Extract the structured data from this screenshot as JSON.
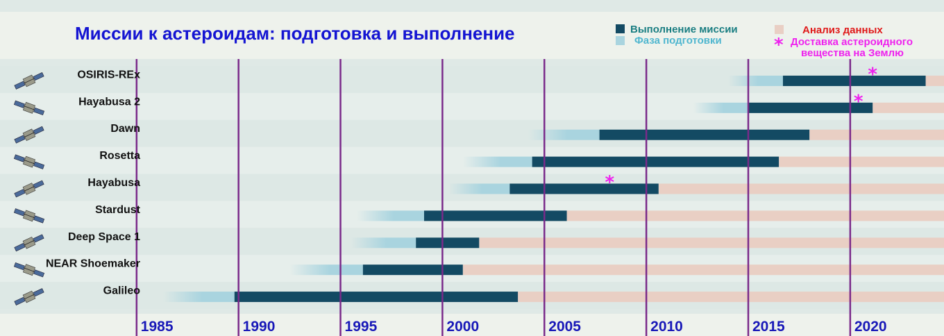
{
  "chart_data": {
    "type": "gantt",
    "title": "Миссии к астероидам: подготовка и выполнение",
    "legend": {
      "mission": "Выполнение миссии",
      "prep": "Фаза подготовки",
      "analysis": "Анализ данных",
      "delivery_marker": "*",
      "delivery_line1": "Доставка  астероидного",
      "delivery_line2": "вещества на Землю"
    },
    "colors": {
      "mission": "#134a63",
      "prep": "#a9d4df",
      "analysis": "#e9cfc4",
      "delivery": "#ee22ee",
      "gridline": "#7a2a8a",
      "title": "#1414d2",
      "year_label": "#1818b8"
    },
    "x_ticks": [
      "1985",
      "1990",
      "1995",
      "2000",
      "2005",
      "2010",
      "2015",
      "2020"
    ],
    "xlim": [
      1978.3,
      2024.6
    ],
    "gridline_years": [
      1985,
      1990,
      1995,
      2000,
      2005,
      2010,
      2015,
      2020,
      2025
    ],
    "missions": [
      {
        "name": "OSIRIS-REx",
        "prep_start": 2014.0,
        "mission_start": 2016.7,
        "mission_end": 2023.7,
        "delivery_year": 2021.1,
        "icon": "satellite-icon"
      },
      {
        "name": "Hayabusa 2",
        "prep_start": 2012.3,
        "mission_start": 2015.0,
        "mission_end": 2021.1,
        "delivery_year": 2020.4,
        "icon": "satellite-icon"
      },
      {
        "name": "Dawn",
        "prep_start": 2004.2,
        "mission_start": 2007.7,
        "mission_end": 2018.0,
        "icon": "satellite-icon"
      },
      {
        "name": "Rosetta",
        "prep_start": 2001.0,
        "mission_start": 2004.4,
        "mission_end": 2016.5,
        "icon": "satellite-icon"
      },
      {
        "name": "Hayabusa",
        "prep_start": 2000.3,
        "mission_start": 2003.3,
        "mission_end": 2010.6,
        "delivery_year": 2008.2,
        "icon": "satellite-icon"
      },
      {
        "name": "Stardust",
        "prep_start": 1995.8,
        "mission_start": 1999.1,
        "mission_end": 2006.1,
        "icon": "satellite-icon"
      },
      {
        "name": "Deep Space 1",
        "prep_start": 1995.5,
        "mission_start": 1998.7,
        "mission_end": 2001.8,
        "icon": "satellite-icon"
      },
      {
        "name": "NEAR Shoemaker",
        "prep_start": 1992.5,
        "mission_start": 1996.1,
        "mission_end": 2001.0,
        "icon": "satellite-icon"
      },
      {
        "name": "Galileo",
        "prep_start": 1986.3,
        "mission_start": 1989.8,
        "mission_end": 2003.7,
        "icon": "satellite-icon"
      }
    ]
  }
}
